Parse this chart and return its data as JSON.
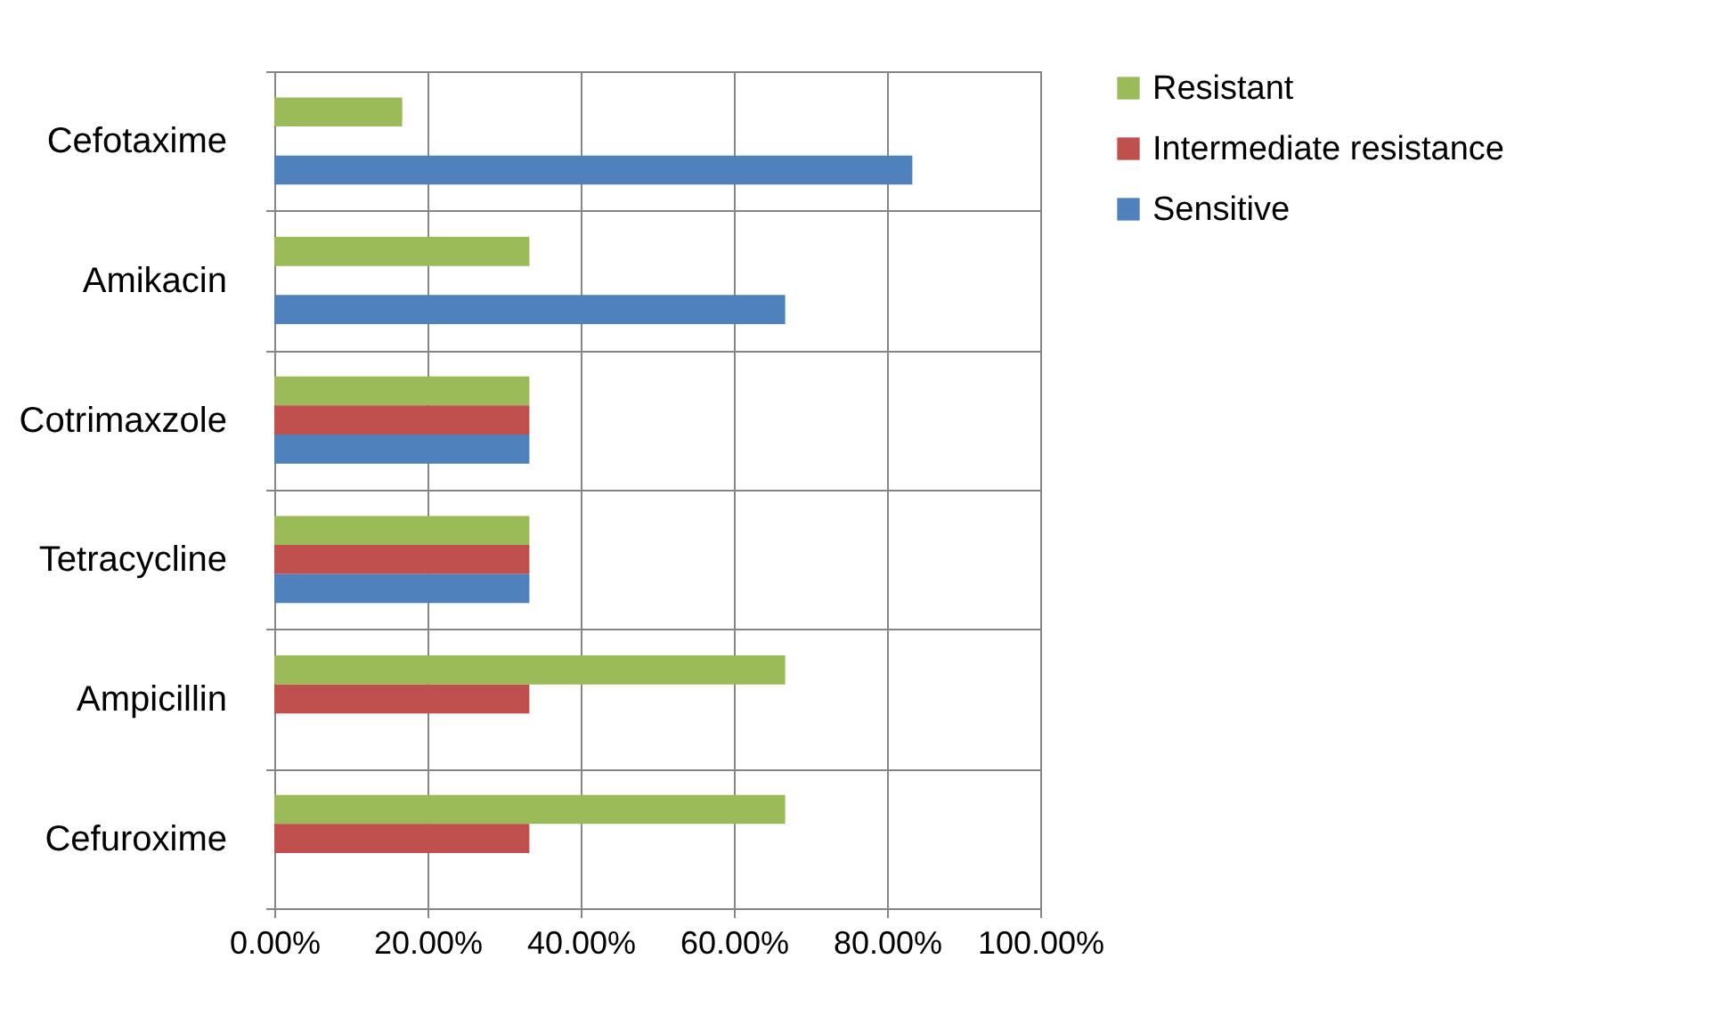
{
  "chart_data": {
    "type": "bar",
    "orientation": "horizontal",
    "categories": [
      "Cefotaxime",
      "Amikacin",
      "Cotrimaxzole",
      "Tetracycline",
      "Ampicillin",
      "Cefuroxime"
    ],
    "series": [
      {
        "name": "Resistant",
        "color": "#9bbb59",
        "values": [
          16.7,
          33.3,
          33.3,
          33.3,
          66.7,
          66.7
        ]
      },
      {
        "name": "Intermediate resistance",
        "color": "#c0504d",
        "values": [
          null,
          null,
          33.3,
          33.3,
          33.3,
          33.3
        ]
      },
      {
        "name": "Sensitive",
        "color": "#4f81bd",
        "values": [
          83.3,
          66.7,
          33.3,
          33.3,
          null,
          null
        ]
      }
    ],
    "xlim": [
      0,
      100
    ],
    "xticks": [
      {
        "value": 0,
        "label": "0.00%"
      },
      {
        "value": 20,
        "label": "20.00%"
      },
      {
        "value": 40,
        "label": "40.00%"
      },
      {
        "value": 60,
        "label": "60.00%"
      },
      {
        "value": 80,
        "label": "80.00%"
      },
      {
        "value": 100,
        "label": "100.00%"
      }
    ],
    "grid": true,
    "legend": "right"
  }
}
